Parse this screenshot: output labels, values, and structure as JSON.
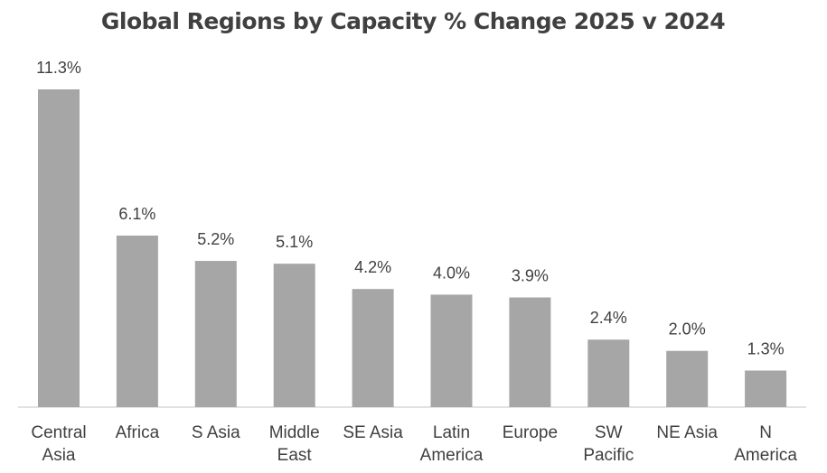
{
  "chart_data": {
    "type": "bar",
    "title": "Global Regions by Capacity % Change 2025 v 2024",
    "categories": [
      "Central Asia",
      "Africa",
      "S Asia",
      "Middle East",
      "SE Asia",
      "Latin America",
      "Europe",
      "SW Pacific",
      "NE Asia",
      "N America"
    ],
    "values": [
      11.3,
      6.1,
      5.2,
      5.1,
      4.2,
      4.0,
      3.9,
      2.4,
      2.0,
      1.3
    ],
    "value_labels": [
      "11.3%",
      "6.1%",
      "5.2%",
      "5.1%",
      "4.2%",
      "4.0%",
      "3.9%",
      "2.4%",
      "2.0%",
      "1.3%"
    ],
    "color": "#a6a6a6"
  }
}
